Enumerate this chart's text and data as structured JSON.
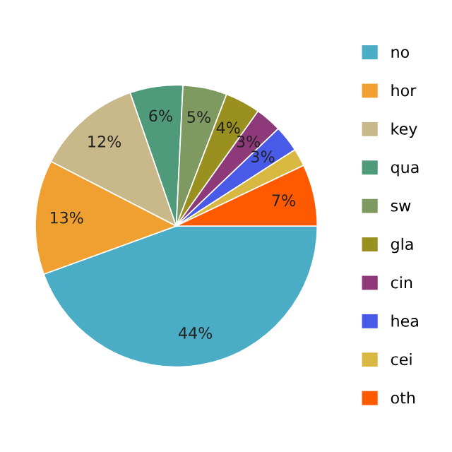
{
  "chart_data": {
    "type": "pie",
    "categories": [
      "no",
      "hor",
      "key",
      "qua",
      "sw",
      "gla",
      "cin",
      "hea",
      "cei",
      "oth"
    ],
    "values": [
      44,
      13,
      12,
      6,
      5,
      4,
      3,
      3,
      2,
      7
    ],
    "value_labels": [
      "44%",
      "13%",
      "12%",
      "6%",
      "5%",
      "4%",
      "3%",
      "3%",
      null,
      "7%"
    ],
    "colors": [
      "#4bacc6",
      "#f0a030",
      "#c8b88a",
      "#4f9a7a",
      "#7f9a60",
      "#9a9020",
      "#8e3a7a",
      "#4a5ae8",
      "#d8b840",
      "#ff5a00"
    ],
    "legend": "right"
  }
}
